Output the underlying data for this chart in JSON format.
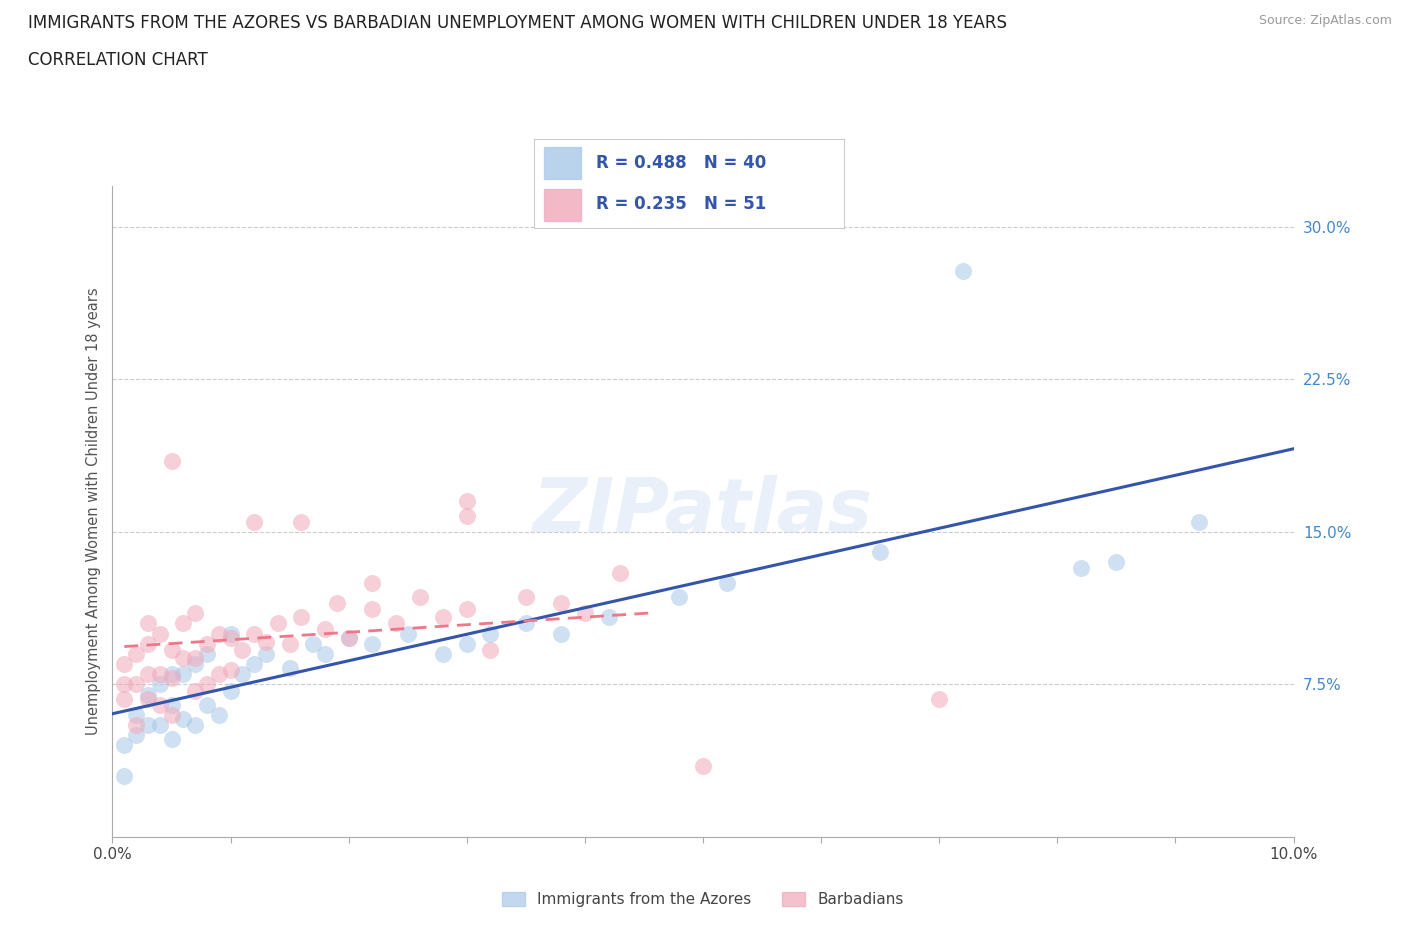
{
  "title_line1": "IMMIGRANTS FROM THE AZORES VS BARBADIAN UNEMPLOYMENT AMONG WOMEN WITH CHILDREN UNDER 18 YEARS",
  "title_line2": "CORRELATION CHART",
  "source_text": "Source: ZipAtlas.com",
  "ylabel": "Unemployment Among Women with Children Under 18 years",
  "xlim": [
    0.0,
    0.1
  ],
  "ylim": [
    0.0,
    0.32
  ],
  "xticks": [
    0.0,
    0.01,
    0.02,
    0.03,
    0.04,
    0.05,
    0.06,
    0.07,
    0.08,
    0.09,
    0.1
  ],
  "xtick_labels": [
    "0.0%",
    "",
    "",
    "",
    "",
    "",
    "",
    "",
    "",
    "",
    "10.0%"
  ],
  "yticks": [
    0.0,
    0.075,
    0.15,
    0.225,
    0.3
  ],
  "ytick_labels": [
    "",
    "7.5%",
    "15.0%",
    "22.5%",
    "30.0%"
  ],
  "grid_color": "#cccccc",
  "background_color": "#ffffff",
  "legend_r1": "0.488",
  "legend_n1": "40",
  "legend_r2": "0.235",
  "legend_n2": "51",
  "color_azores": "#A8C8E8",
  "color_barbadian": "#F0A8B8",
  "color_line_azores": "#3355AA",
  "color_line_barbadian": "#EE7788",
  "azores_x": [
    0.001,
    0.001,
    0.002,
    0.002,
    0.003,
    0.003,
    0.004,
    0.004,
    0.005,
    0.005,
    0.005,
    0.006,
    0.006,
    0.007,
    0.007,
    0.008,
    0.008,
    0.009,
    0.01,
    0.01,
    0.011,
    0.012,
    0.013,
    0.015,
    0.017,
    0.018,
    0.02,
    0.022,
    0.025,
    0.028,
    0.03,
    0.032,
    0.035,
    0.038,
    0.042,
    0.048,
    0.052,
    0.065,
    0.082,
    0.092
  ],
  "azores_y": [
    0.045,
    0.03,
    0.05,
    0.06,
    0.055,
    0.07,
    0.055,
    0.075,
    0.048,
    0.065,
    0.08,
    0.058,
    0.08,
    0.055,
    0.085,
    0.065,
    0.09,
    0.06,
    0.072,
    0.1,
    0.08,
    0.085,
    0.09,
    0.083,
    0.095,
    0.09,
    0.098,
    0.095,
    0.1,
    0.09,
    0.095,
    0.1,
    0.105,
    0.1,
    0.108,
    0.118,
    0.125,
    0.14,
    0.132,
    0.155
  ],
  "barbadian_x": [
    0.001,
    0.001,
    0.001,
    0.002,
    0.002,
    0.002,
    0.003,
    0.003,
    0.003,
    0.003,
    0.004,
    0.004,
    0.004,
    0.005,
    0.005,
    0.005,
    0.006,
    0.006,
    0.007,
    0.007,
    0.007,
    0.008,
    0.008,
    0.009,
    0.009,
    0.01,
    0.01,
    0.011,
    0.012,
    0.013,
    0.014,
    0.015,
    0.016,
    0.018,
    0.019,
    0.02,
    0.022,
    0.024,
    0.026,
    0.028,
    0.03,
    0.032,
    0.035,
    0.038,
    0.04,
    0.043,
    0.016,
    0.022,
    0.03,
    0.05,
    0.07
  ],
  "barbadian_y": [
    0.068,
    0.075,
    0.085,
    0.055,
    0.075,
    0.09,
    0.068,
    0.08,
    0.095,
    0.105,
    0.065,
    0.08,
    0.1,
    0.06,
    0.078,
    0.092,
    0.088,
    0.105,
    0.072,
    0.088,
    0.11,
    0.075,
    0.095,
    0.08,
    0.1,
    0.082,
    0.098,
    0.092,
    0.1,
    0.096,
    0.105,
    0.095,
    0.108,
    0.102,
    0.115,
    0.098,
    0.112,
    0.105,
    0.118,
    0.108,
    0.112,
    0.092,
    0.118,
    0.115,
    0.11,
    0.13,
    0.155,
    0.125,
    0.158,
    0.035,
    0.068
  ],
  "outlier_azores_x": [
    0.072
  ],
  "outlier_azores_y": [
    0.278
  ],
  "outlier_azores2_x": [
    0.085
  ],
  "outlier_azores2_y": [
    0.135
  ],
  "outlier_bar_x": [
    0.005
  ],
  "outlier_bar_y": [
    0.185
  ],
  "outlier_bar2_x": [
    0.012
  ],
  "outlier_bar2_y": [
    0.155
  ],
  "outlier_bar3_x": [
    0.03
  ],
  "outlier_bar3_y": [
    0.165
  ]
}
